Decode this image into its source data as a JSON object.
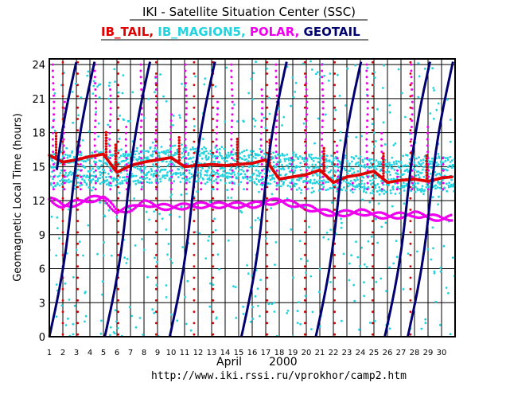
{
  "title": "IKI - Satellite Situation Center (SSC)",
  "legend": [
    {
      "name": "IB_TAIL",
      "color": "#e00000",
      "sep": ", "
    },
    {
      "name": "IB_MAGION5",
      "color": "#22d3e0",
      "sep": ", "
    },
    {
      "name": "POLAR",
      "color": "#ee00ee",
      "sep": ", "
    },
    {
      "name": "GEOTAIL",
      "color": "#000070",
      "sep": ""
    }
  ],
  "url": "http://www.iki.rssi.ru/vprokhor/camp2.htm",
  "chart_data": {
    "type": "scatter",
    "title": "IKI - Satellite Situation Center (SSC)",
    "ylabel": "Geomagnetic  Local  Time  (hours)",
    "xlabel_month": "April",
    "xlabel_year": "2000",
    "ylim": [
      0,
      24.5
    ],
    "xlim": [
      1,
      31
    ],
    "y_ticks": [
      0,
      3,
      6,
      9,
      12,
      15,
      18,
      21,
      24
    ],
    "y_tick_labels": [
      "0",
      "3",
      "6",
      "9",
      "12",
      "15",
      "18",
      "21",
      "24"
    ],
    "x_ticks": [
      1,
      2,
      3,
      4,
      5,
      6,
      7,
      8,
      9,
      10,
      11,
      12,
      13,
      14,
      15,
      16,
      17,
      18,
      19,
      20,
      21,
      22,
      23,
      24,
      25,
      26,
      27,
      28,
      29,
      30
    ],
    "grid": true,
    "series": [
      {
        "name": "IB_TAIL",
        "color": "#e00000",
        "baseline": [
          [
            1,
            16.0
          ],
          [
            2,
            15.4
          ],
          [
            3,
            15.6
          ],
          [
            4,
            15.9
          ],
          [
            5,
            16.1
          ],
          [
            6,
            14.5
          ],
          [
            7,
            15.1
          ],
          [
            8,
            15.4
          ],
          [
            9,
            15.6
          ],
          [
            10,
            15.8
          ],
          [
            11,
            15.0
          ],
          [
            12,
            15.1
          ],
          [
            13,
            15.2
          ],
          [
            14,
            15.1
          ],
          [
            15,
            15.2
          ],
          [
            16,
            15.3
          ],
          [
            17,
            15.6
          ],
          [
            18,
            13.9
          ],
          [
            19,
            14.1
          ],
          [
            20,
            14.3
          ],
          [
            21,
            14.7
          ],
          [
            22,
            13.6
          ],
          [
            23,
            14.1
          ],
          [
            24,
            14.3
          ],
          [
            25,
            14.6
          ],
          [
            26,
            13.6
          ],
          [
            27,
            13.8
          ],
          [
            28,
            13.9
          ],
          [
            29,
            13.7
          ],
          [
            30,
            14.0
          ],
          [
            30.8,
            14.1
          ]
        ]
      },
      {
        "name": "IB_MAGION5",
        "color": "#22d3e0",
        "band": [
          [
            1,
            14.8
          ],
          [
            5,
            14.8
          ],
          [
            10,
            15.3
          ],
          [
            15,
            15.0
          ],
          [
            20,
            14.6
          ],
          [
            25,
            14.2
          ],
          [
            30,
            14.4
          ],
          [
            31,
            14.4
          ]
        ]
      },
      {
        "name": "POLAR",
        "color": "#ee00ee",
        "baseline": [
          [
            1,
            12.2
          ],
          [
            2,
            11.5
          ],
          [
            3,
            11.8
          ],
          [
            4,
            12.1
          ],
          [
            5,
            12.3
          ],
          [
            6,
            11.0
          ],
          [
            7,
            11.3
          ],
          [
            8,
            11.8
          ],
          [
            9,
            11.5
          ],
          [
            10,
            11.4
          ],
          [
            12,
            11.6
          ],
          [
            14,
            11.6
          ],
          [
            16,
            11.6
          ],
          [
            18,
            12.0
          ],
          [
            20,
            11.4
          ],
          [
            22,
            10.8
          ],
          [
            24,
            11.0
          ],
          [
            26,
            10.6
          ],
          [
            28,
            10.8
          ],
          [
            30,
            10.4
          ],
          [
            30.8,
            10.5
          ]
        ]
      },
      {
        "name": "GEOTAIL",
        "color": "#000070",
        "crossings": [
          1.0,
          5.1,
          9.9,
          15.2,
          20.7,
          25.8,
          30.8
        ],
        "x_per_24h": 3.3
      }
    ]
  }
}
